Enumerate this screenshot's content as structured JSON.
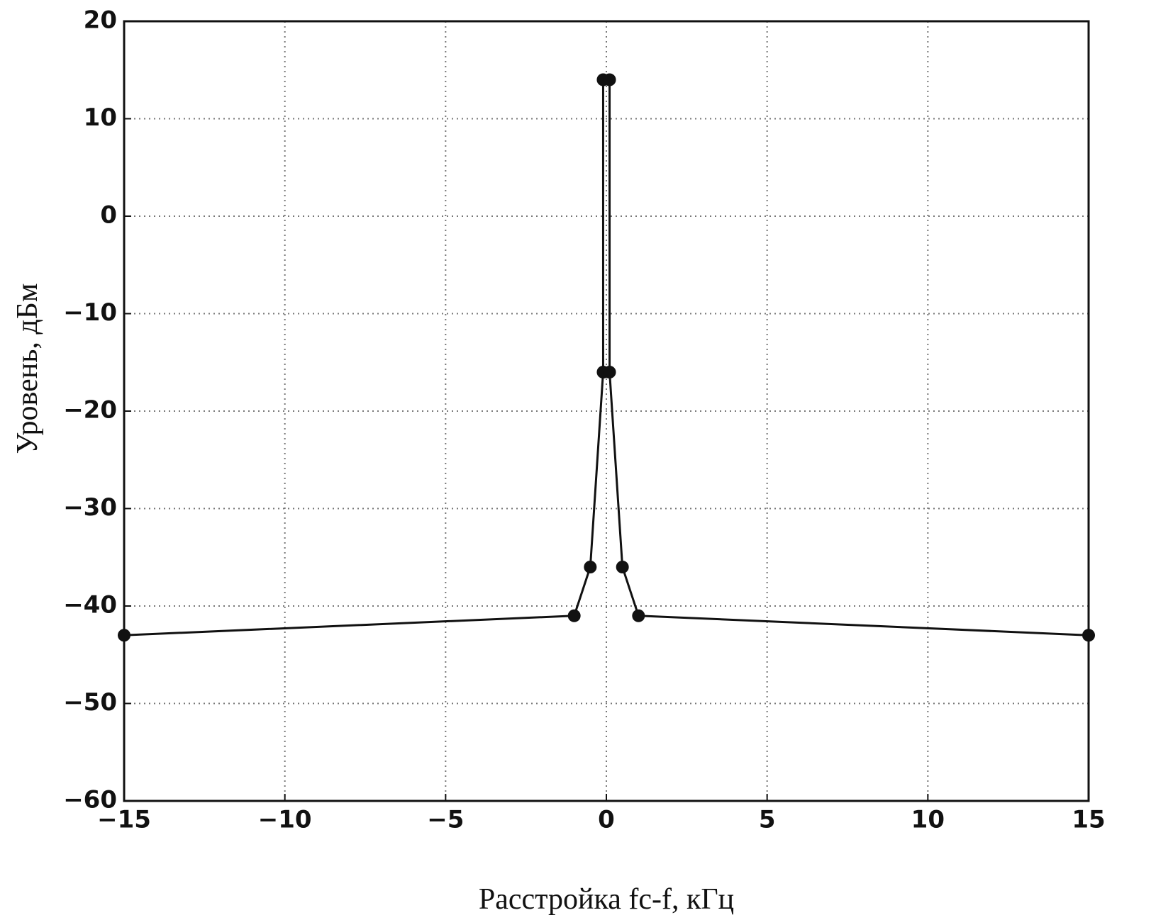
{
  "chart_data": {
    "type": "line",
    "x_label": "Расстройка fc-f, кГц",
    "y_label": "Уровень, дБм",
    "series": [
      {
        "color": "#111111",
        "x": [
          -15,
          -1,
          -0.5,
          -0.1,
          -0.1,
          0.1,
          0.1,
          0.5,
          1,
          15
        ],
        "values": [
          -43,
          -41,
          -36,
          -16,
          14,
          14,
          -16,
          -36,
          -41,
          -43
        ]
      }
    ],
    "xlim": [
      -15,
      15
    ],
    "xticks": [
      {
        "value": -15,
        "label": "−15"
      },
      {
        "value": -10,
        "label": "−10"
      },
      {
        "value": -5,
        "label": "−5"
      },
      0,
      5,
      10,
      15
    ],
    "ylim": [
      -60,
      20
    ],
    "yticks": [
      {
        "value": -60,
        "label": "−60"
      },
      {
        "value": -50,
        "label": "−50"
      },
      {
        "value": -40,
        "label": "−40"
      },
      {
        "value": -30,
        "label": "−30"
      },
      {
        "value": -20,
        "label": "−20"
      },
      {
        "value": -10,
        "label": "−10"
      },
      0,
      10,
      20
    ],
    "grid": true
  }
}
